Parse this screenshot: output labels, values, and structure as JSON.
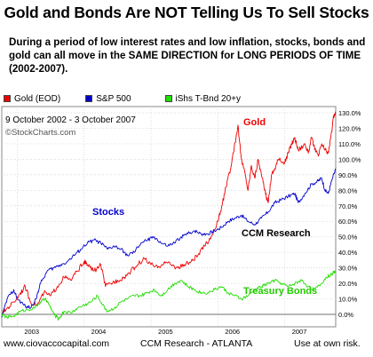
{
  "header": {
    "title": "Gold and Bonds Are NOT Telling Us To Sell Stocks",
    "subtitle": "During a period of low interest rates and low inflation, stocks, bonds and gold can all move in the SAME DIRECTION for LONG PERIODS OF TIME (2002-2007)."
  },
  "footer": {
    "left": "www.ciovaccocapital.com",
    "center": "CCM Research - ATLANTA",
    "right": "Use at own risk."
  },
  "colors": {
    "gold": "#ee0000",
    "stocks": "#0000cc",
    "bonds": "#22dd00",
    "grid": "#cfcfcf",
    "text": "#000000"
  },
  "chart_data": {
    "type": "line",
    "date_range_label": "9 October 2002 - 3 October 2007",
    "watermark": "©StockCharts.com",
    "legend": [
      "Gold (EOD)",
      "S&P 500",
      "iShs T-Bnd 20+y"
    ],
    "annotations": {
      "gold": "Gold",
      "stocks": "Stocks",
      "bonds": "Treasury Bonds",
      "research": "CCM Research"
    },
    "x_ticks": [
      {
        "label": "2003",
        "x": 2003.0
      },
      {
        "label": "2004",
        "x": 2004.0
      },
      {
        "label": "2005",
        "x": 2005.0
      },
      {
        "label": "2006",
        "x": 2006.0
      },
      {
        "label": "2007",
        "x": 2007.0
      }
    ],
    "xlim": [
      2002.77,
      2007.76
    ],
    "ylim": [
      -8,
      134
    ],
    "y_ticks": [
      "0.0%",
      "10.0%",
      "20.0%",
      "30.0%",
      "40.0%",
      "50.0%",
      "60.0%",
      "70.0%",
      "80.0%",
      "90.0%",
      "100.0%",
      "110.0%",
      "120.0%",
      "130.0%"
    ],
    "y_tick_values": [
      0,
      10,
      20,
      30,
      40,
      50,
      60,
      70,
      80,
      90,
      100,
      110,
      120,
      130
    ],
    "series": [
      {
        "name": "Gold (EOD)",
        "key": "gold",
        "points": [
          [
            2002.77,
            0
          ],
          [
            2002.85,
            4
          ],
          [
            2002.95,
            8
          ],
          [
            2003.05,
            14
          ],
          [
            2003.12,
            18
          ],
          [
            2003.2,
            8
          ],
          [
            2003.3,
            6
          ],
          [
            2003.4,
            14
          ],
          [
            2003.5,
            12
          ],
          [
            2003.6,
            18
          ],
          [
            2003.7,
            24
          ],
          [
            2003.8,
            22
          ],
          [
            2003.9,
            28
          ],
          [
            2004.0,
            34
          ],
          [
            2004.05,
            32
          ],
          [
            2004.15,
            28
          ],
          [
            2004.25,
            32
          ],
          [
            2004.32,
            18
          ],
          [
            2004.4,
            20
          ],
          [
            2004.5,
            22
          ],
          [
            2004.6,
            24
          ],
          [
            2004.7,
            28
          ],
          [
            2004.8,
            32
          ],
          [
            2004.9,
            36
          ],
          [
            2005.0,
            32
          ],
          [
            2005.1,
            30
          ],
          [
            2005.2,
            34
          ],
          [
            2005.3,
            32
          ],
          [
            2005.4,
            30
          ],
          [
            2005.5,
            32
          ],
          [
            2005.6,
            34
          ],
          [
            2005.7,
            38
          ],
          [
            2005.8,
            44
          ],
          [
            2005.9,
            50
          ],
          [
            2006.0,
            60
          ],
          [
            2006.05,
            68
          ],
          [
            2006.12,
            82
          ],
          [
            2006.2,
            96
          ],
          [
            2006.3,
            122
          ],
          [
            2006.35,
            100
          ],
          [
            2006.4,
            92
          ],
          [
            2006.45,
            80
          ],
          [
            2006.5,
            96
          ],
          [
            2006.55,
            88
          ],
          [
            2006.6,
            100
          ],
          [
            2006.65,
            90
          ],
          [
            2006.7,
            80
          ],
          [
            2006.75,
            72
          ],
          [
            2006.8,
            90
          ],
          [
            2006.85,
            94
          ],
          [
            2006.9,
            100
          ],
          [
            2007.0,
            98
          ],
          [
            2007.05,
            104
          ],
          [
            2007.1,
            110
          ],
          [
            2007.15,
            114
          ],
          [
            2007.2,
            106
          ],
          [
            2007.3,
            110
          ],
          [
            2007.35,
            104
          ],
          [
            2007.4,
            114
          ],
          [
            2007.45,
            106
          ],
          [
            2007.5,
            102
          ],
          [
            2007.55,
            110
          ],
          [
            2007.6,
            106
          ],
          [
            2007.65,
            104
          ],
          [
            2007.7,
            118
          ],
          [
            2007.73,
            128
          ],
          [
            2007.76,
            130
          ]
        ]
      },
      {
        "name": "S&P 500",
        "key": "stocks",
        "points": [
          [
            2002.77,
            -2
          ],
          [
            2002.85,
            10
          ],
          [
            2002.95,
            16
          ],
          [
            2003.0,
            10
          ],
          [
            2003.1,
            6
          ],
          [
            2003.2,
            4
          ],
          [
            2003.28,
            10
          ],
          [
            2003.35,
            20
          ],
          [
            2003.45,
            28
          ],
          [
            2003.55,
            30
          ],
          [
            2003.65,
            32
          ],
          [
            2003.75,
            34
          ],
          [
            2003.85,
            38
          ],
          [
            2003.95,
            42
          ],
          [
            2004.05,
            46
          ],
          [
            2004.15,
            48
          ],
          [
            2004.25,
            46
          ],
          [
            2004.35,
            42
          ],
          [
            2004.45,
            44
          ],
          [
            2004.55,
            42
          ],
          [
            2004.65,
            38
          ],
          [
            2004.75,
            40
          ],
          [
            2004.85,
            46
          ],
          [
            2004.95,
            48
          ],
          [
            2005.05,
            50
          ],
          [
            2005.15,
            46
          ],
          [
            2005.25,
            44
          ],
          [
            2005.35,
            46
          ],
          [
            2005.45,
            50
          ],
          [
            2005.55,
            52
          ],
          [
            2005.65,
            54
          ],
          [
            2005.75,
            52
          ],
          [
            2005.85,
            52
          ],
          [
            2005.95,
            54
          ],
          [
            2006.05,
            56
          ],
          [
            2006.15,
            60
          ],
          [
            2006.25,
            62
          ],
          [
            2006.35,
            64
          ],
          [
            2006.45,
            60
          ],
          [
            2006.55,
            58
          ],
          [
            2006.65,
            62
          ],
          [
            2006.75,
            66
          ],
          [
            2006.85,
            72
          ],
          [
            2006.95,
            74
          ],
          [
            2007.05,
            76
          ],
          [
            2007.15,
            78
          ],
          [
            2007.2,
            72
          ],
          [
            2007.3,
            78
          ],
          [
            2007.4,
            84
          ],
          [
            2007.5,
            86
          ],
          [
            2007.55,
            88
          ],
          [
            2007.6,
            80
          ],
          [
            2007.65,
            78
          ],
          [
            2007.7,
            86
          ],
          [
            2007.76,
            94
          ]
        ]
      },
      {
        "name": "iShs T-Bnd 20+y",
        "key": "bonds",
        "points": [
          [
            2002.77,
            0
          ],
          [
            2002.85,
            -2
          ],
          [
            2002.95,
            -1
          ],
          [
            2003.05,
            2
          ],
          [
            2003.15,
            3
          ],
          [
            2003.25,
            4
          ],
          [
            2003.35,
            8
          ],
          [
            2003.42,
            10
          ],
          [
            2003.48,
            6
          ],
          [
            2003.55,
            0
          ],
          [
            2003.62,
            -3
          ],
          [
            2003.7,
            2
          ],
          [
            2003.8,
            1
          ],
          [
            2003.9,
            4
          ],
          [
            2004.0,
            6
          ],
          [
            2004.1,
            8
          ],
          [
            2004.2,
            12
          ],
          [
            2004.28,
            6
          ],
          [
            2004.35,
            2
          ],
          [
            2004.45,
            4
          ],
          [
            2004.55,
            8
          ],
          [
            2004.65,
            10
          ],
          [
            2004.75,
            12
          ],
          [
            2004.85,
            12
          ],
          [
            2004.95,
            14
          ],
          [
            2005.05,
            16
          ],
          [
            2005.15,
            12
          ],
          [
            2005.25,
            16
          ],
          [
            2005.35,
            20
          ],
          [
            2005.45,
            22
          ],
          [
            2005.55,
            18
          ],
          [
            2005.65,
            16
          ],
          [
            2005.75,
            14
          ],
          [
            2005.85,
            14
          ],
          [
            2005.95,
            16
          ],
          [
            2006.05,
            18
          ],
          [
            2006.15,
            14
          ],
          [
            2006.25,
            12
          ],
          [
            2006.35,
            10
          ],
          [
            2006.45,
            12
          ],
          [
            2006.55,
            16
          ],
          [
            2006.65,
            18
          ],
          [
            2006.75,
            20
          ],
          [
            2006.85,
            22
          ],
          [
            2006.95,
            20
          ],
          [
            2007.05,
            18
          ],
          [
            2007.15,
            20
          ],
          [
            2007.25,
            22
          ],
          [
            2007.35,
            18
          ],
          [
            2007.45,
            16
          ],
          [
            2007.55,
            20
          ],
          [
            2007.62,
            24
          ],
          [
            2007.7,
            26
          ],
          [
            2007.76,
            28
          ]
        ]
      }
    ]
  }
}
